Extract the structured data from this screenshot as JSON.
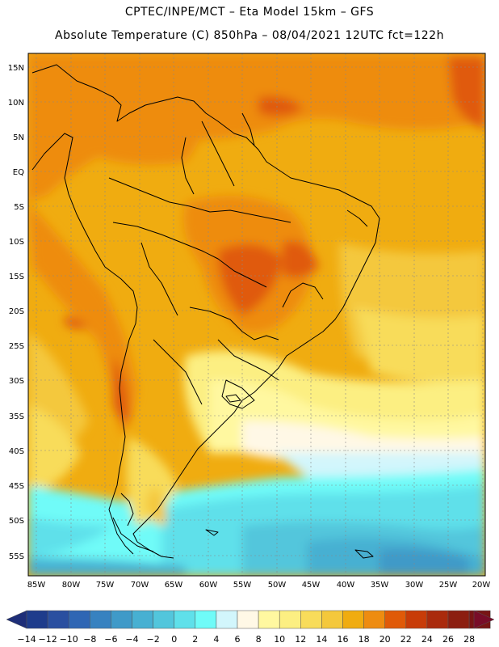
{
  "title_line1": "CPTEC/INPE/MCT –  Eta Model 15km – GFS",
  "title_line2": "Absolute Temperature (C) 850hPa – 08/04/2021 12UTC fct=122h",
  "lat_labels": [
    "15N",
    "10N",
    "5N",
    "EQ",
    "5S",
    "10S",
    "15S",
    "20S",
    "25S",
    "30S",
    "35S",
    "40S",
    "45S",
    "50S",
    "55S"
  ],
  "lon_labels": [
    "85W",
    "80W",
    "75W",
    "70W",
    "65W",
    "60W",
    "55W",
    "50W",
    "45W",
    "40W",
    "35W",
    "30W",
    "25W",
    "20W"
  ],
  "colorbar": {
    "labels": [
      "-14",
      "-12",
      "-10",
      "-8",
      "-6",
      "-4",
      "-2",
      "0",
      "2",
      "4",
      "6",
      "8",
      "10",
      "12",
      "14",
      "16",
      "18",
      "20",
      "22",
      "24",
      "26",
      "28"
    ],
    "colors": [
      "#1e3c8c",
      "#2a4fa0",
      "#2f66b4",
      "#3782c0",
      "#3f9ac8",
      "#47b0d2",
      "#52c6dc",
      "#5fe0ea",
      "#6ffbf8",
      "#d2f6fc",
      "#fff8e6",
      "#fff8a0",
      "#fcef82",
      "#f8dc5a",
      "#f4c83c",
      "#f0ac10",
      "#ee8c10",
      "#e05a08",
      "#c83c08",
      "#aa2a0c",
      "#8c1e10",
      "#781414"
    ],
    "under_color": "#1e2e78",
    "over_color": "#780c28"
  }
}
